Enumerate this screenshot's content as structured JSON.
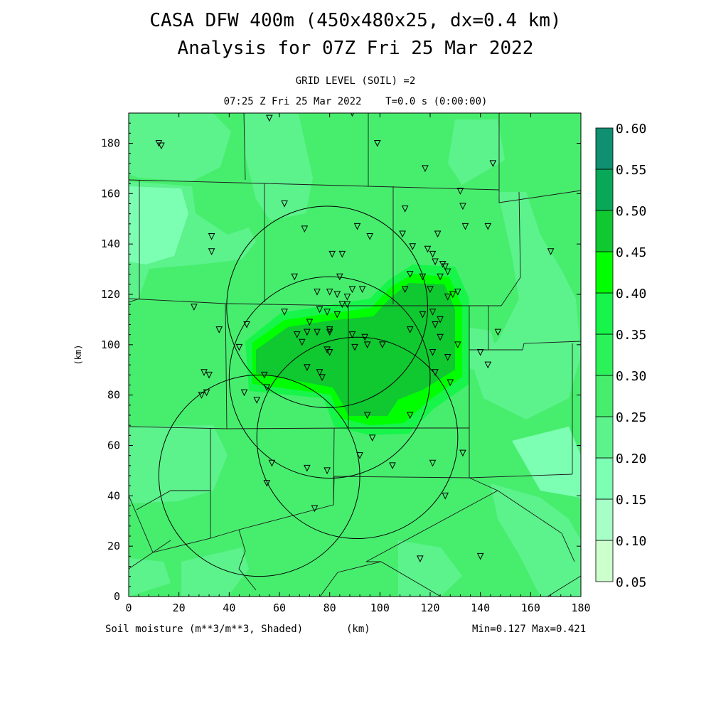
{
  "header": {
    "title_line1": "CASA DFW 400m (450x480x25, dx=0.4 km)",
    "title_line2": "Analysis for 07Z Fri 25 Mar 2022",
    "grid_level": "GRID LEVEL (SOIL) =2",
    "timestamp": "07:25 Z Fri 25 Mar 2022    T=0.0 s (0:00:00)"
  },
  "footer": {
    "field_label": "Soil moisture (m**3/m**3, Shaded)",
    "unit_label": "(km)",
    "minmax": "Min=0.127 Max=0.421"
  },
  "axes": {
    "x_ticks": [
      "0",
      "20",
      "40",
      "60",
      "80",
      "100",
      "120",
      "140",
      "160",
      "180"
    ],
    "y_ticks": [
      "0",
      "20",
      "40",
      "60",
      "80",
      "100",
      "120",
      "140",
      "160",
      "180"
    ],
    "y_label": "(km)",
    "x_range": [
      0,
      180
    ],
    "y_range": [
      0,
      192
    ]
  },
  "colorbar": {
    "levels": [
      "0.05",
      "0.10",
      "0.15",
      "0.20",
      "0.25",
      "0.30",
      "0.35",
      "0.40",
      "0.45",
      "0.50",
      "0.55",
      "0.60"
    ],
    "colors": [
      "#ccffcc",
      "#a6ffc6",
      "#7dffb3",
      "#5cf28c",
      "#47ee6e",
      "#2cf25a",
      "#17f54b",
      "#00ff00",
      "#10c830",
      "#08a858",
      "#109070",
      "#1060e8"
    ]
  },
  "field": {
    "background": "#47ee6e",
    "light_regions_value": "0.20-0.25",
    "dark_core_value": "0.40-0.45"
  },
  "radar_rings": [
    {
      "center_km": [
        79,
        115
      ],
      "radius_km": 40
    },
    {
      "center_km": [
        80,
        87
      ],
      "radius_km": 40
    },
    {
      "center_km": [
        91,
        63
      ],
      "radius_km": 40
    },
    {
      "center_km": [
        52,
        48
      ],
      "radius_km": 40
    }
  ],
  "stations_km": [
    [
      12,
      180
    ],
    [
      13,
      179
    ],
    [
      56,
      190
    ],
    [
      89,
      192
    ],
    [
      99,
      180
    ],
    [
      118,
      170
    ],
    [
      145,
      172
    ],
    [
      132,
      161
    ],
    [
      33,
      143
    ],
    [
      33,
      137
    ],
    [
      62,
      156
    ],
    [
      70,
      146
    ],
    [
      91,
      147
    ],
    [
      96,
      143
    ],
    [
      110,
      154
    ],
    [
      133,
      155
    ],
    [
      134,
      147
    ],
    [
      143,
      147
    ],
    [
      81,
      136
    ],
    [
      85,
      136
    ],
    [
      109,
      144
    ],
    [
      113,
      139
    ],
    [
      119,
      138
    ],
    [
      121,
      136
    ],
    [
      123,
      144
    ],
    [
      122,
      133
    ],
    [
      125,
      132
    ],
    [
      127,
      129
    ],
    [
      168,
      137
    ],
    [
      66,
      127
    ],
    [
      84,
      127
    ],
    [
      89,
      122
    ],
    [
      93,
      122
    ],
    [
      75,
      121
    ],
    [
      80,
      121
    ],
    [
      83,
      120
    ],
    [
      87,
      119
    ],
    [
      110,
      122
    ],
    [
      112,
      128
    ],
    [
      117,
      127
    ],
    [
      120,
      122
    ],
    [
      124,
      127
    ],
    [
      126,
      131
    ],
    [
      127,
      119
    ],
    [
      129,
      120
    ],
    [
      131,
      121
    ],
    [
      26,
      115
    ],
    [
      36,
      106
    ],
    [
      47,
      108
    ],
    [
      62,
      113
    ],
    [
      72,
      109
    ],
    [
      76,
      114
    ],
    [
      79,
      113
    ],
    [
      83,
      112
    ],
    [
      85,
      116
    ],
    [
      87,
      116
    ],
    [
      67,
      104
    ],
    [
      71,
      105
    ],
    [
      75,
      105
    ],
    [
      80,
      106
    ],
    [
      80,
      105
    ],
    [
      89,
      104
    ],
    [
      94,
      103
    ],
    [
      95,
      100
    ],
    [
      101,
      100
    ],
    [
      112,
      106
    ],
    [
      117,
      112
    ],
    [
      121,
      113
    ],
    [
      122,
      108
    ],
    [
      124,
      103
    ],
    [
      124,
      110
    ],
    [
      147,
      105
    ],
    [
      44,
      99
    ],
    [
      69,
      101
    ],
    [
      79,
      98
    ],
    [
      80,
      97
    ],
    [
      90,
      99
    ],
    [
      121,
      97
    ],
    [
      127,
      95
    ],
    [
      131,
      100
    ],
    [
      140,
      97
    ],
    [
      143,
      92
    ],
    [
      30,
      89
    ],
    [
      32,
      88
    ],
    [
      54,
      88
    ],
    [
      71,
      91
    ],
    [
      76,
      89
    ],
    [
      77,
      87
    ],
    [
      122,
      89
    ],
    [
      128,
      85
    ],
    [
      29,
      80
    ],
    [
      31,
      81
    ],
    [
      46,
      81
    ],
    [
      51,
      78
    ],
    [
      55,
      83
    ],
    [
      95,
      72
    ],
    [
      112,
      72
    ],
    [
      97,
      63
    ],
    [
      57,
      53
    ],
    [
      71,
      51
    ],
    [
      79,
      50
    ],
    [
      92,
      56
    ],
    [
      105,
      52
    ],
    [
      121,
      53
    ],
    [
      133,
      57
    ],
    [
      126,
      40
    ],
    [
      55,
      45
    ],
    [
      74,
      35
    ],
    [
      116,
      15
    ],
    [
      140,
      16
    ]
  ]
}
